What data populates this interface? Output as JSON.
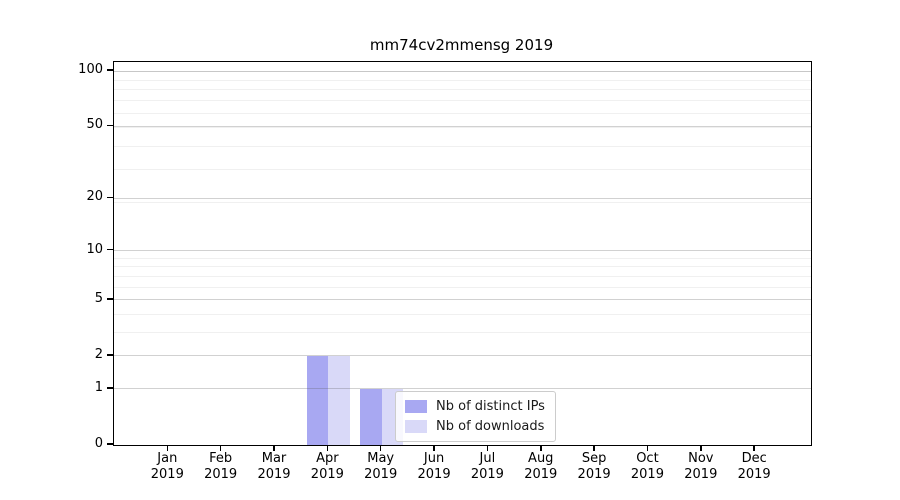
{
  "chart_data": {
    "type": "bar",
    "title": "mm74cv2mmensg 2019",
    "x_tick_months": [
      "Jan",
      "Feb",
      "Mar",
      "Apr",
      "May",
      "Jun",
      "Jul",
      "Aug",
      "Sep",
      "Oct",
      "Nov",
      "Dec"
    ],
    "x_tick_year": "2019",
    "y_scale": "log10(1+y)",
    "ylim": [
      0,
      100
    ],
    "y_ticks": [
      0,
      1,
      2,
      5,
      10,
      20,
      50,
      100
    ],
    "y_minor_gridline_values": [
      3,
      4,
      6,
      7,
      8,
      9,
      19,
      29,
      39,
      49,
      59,
      69,
      79,
      89,
      99
    ],
    "grid": "horizontal",
    "series": [
      {
        "name": "Nb of distinct IPs",
        "color": "#a8a8f2",
        "values": [
          0,
          0,
          0,
          2,
          1,
          0,
          0,
          0,
          0,
          0,
          0,
          0
        ]
      },
      {
        "name": "Nb of downloads",
        "color": "#d9d9f8",
        "values": [
          0,
          0,
          0,
          2,
          1,
          0,
          0,
          0,
          0,
          0,
          0,
          0
        ]
      }
    ],
    "legend": {
      "position": "inside-lower-center",
      "labels": [
        "Nb of distinct IPs",
        "Nb of downloads"
      ]
    }
  }
}
